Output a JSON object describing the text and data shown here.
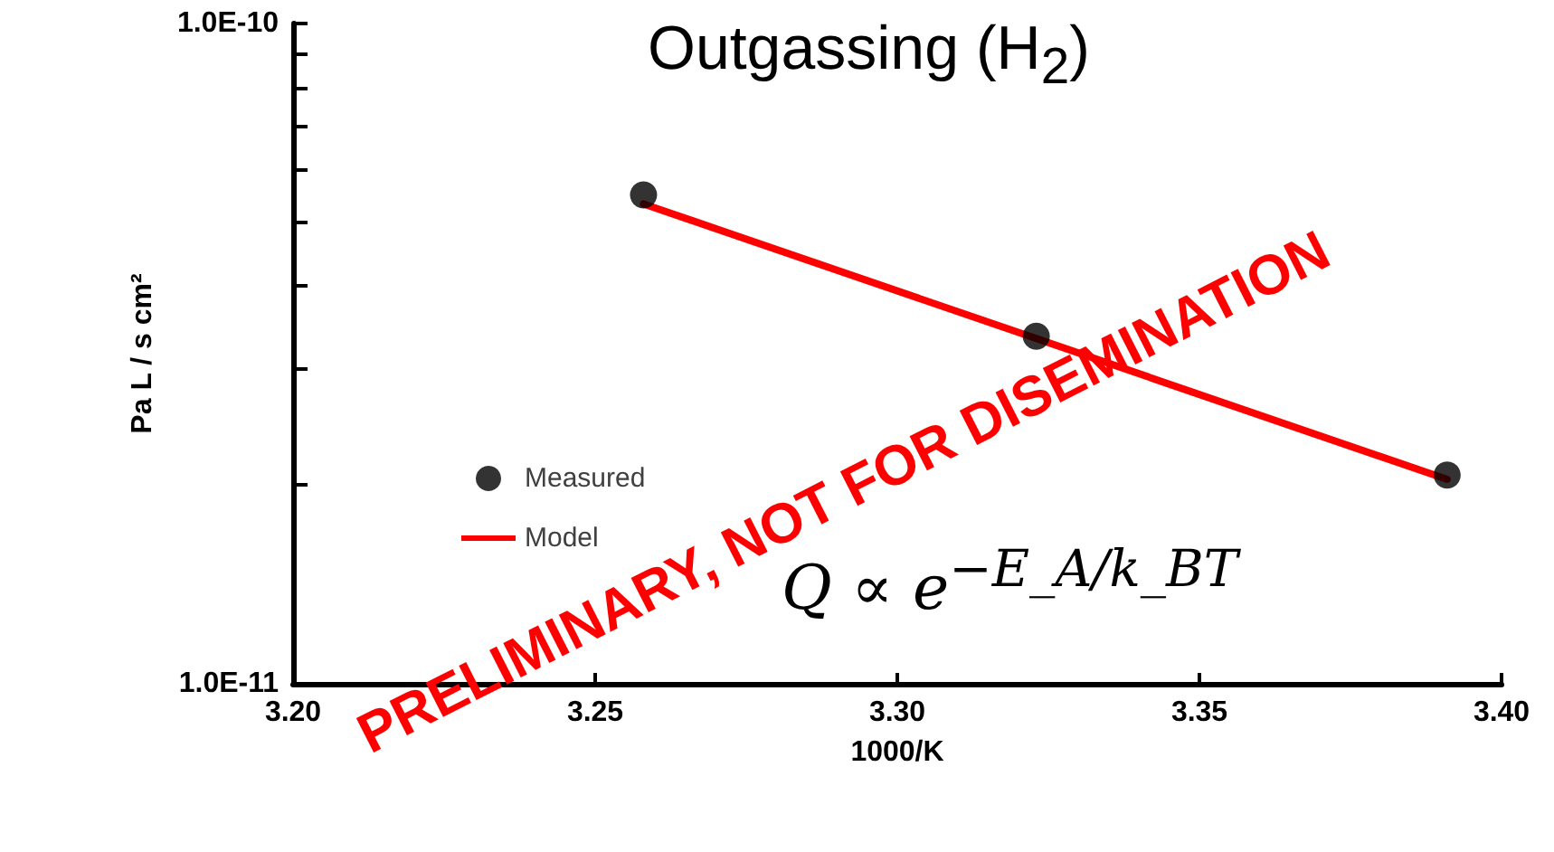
{
  "chart_data": {
    "type": "scatter",
    "title": "Outgassing (H$_{2}$)",
    "xlabel": "1000/K",
    "ylabel": "Pa L / s cm²",
    "annotations": [
      "Q ∝ e$^{−E_A/k_BT}$",
      "PRELIMINARY, NOT FOR DISEMINATION"
    ],
    "log": "y",
    "grid": false,
    "legend": "left",
    "xlim": [
      3.2,
      3.4
    ],
    "xticks": [
      {
        "value": 3.2,
        "label": "3.20"
      },
      {
        "value": 3.25,
        "label": "3.25"
      },
      {
        "value": 3.3,
        "label": "3.30"
      },
      {
        "value": 3.35,
        "label": "3.35"
      },
      {
        "value": 3.4,
        "label": "3.40"
      }
    ],
    "ylim": [
      1e-11,
      1e-10
    ],
    "yticks": [
      {
        "value": 1e-11,
        "label": "1.0E-11"
      },
      {
        "value": 2e-11,
        "label": null
      },
      {
        "value": 3e-11,
        "label": null
      },
      {
        "value": 4e-11,
        "label": null
      },
      {
        "value": 5e-11,
        "label": null
      },
      {
        "value": 6e-11,
        "label": null
      },
      {
        "value": 7e-11,
        "label": null
      },
      {
        "value": 8e-11,
        "label": null
      },
      {
        "value": 9e-11,
        "label": null
      },
      {
        "value": 1e-10,
        "label": "1.0E-10"
      }
    ],
    "series": [
      {
        "name": "Measured",
        "marker": "circle",
        "color": "#000000",
        "x": [
          3.258,
          3.323,
          3.391
        ],
        "values": [
          5.5e-11,
          3.36e-11,
          2.07e-11
        ]
      },
      {
        "name": "Model",
        "type": "line",
        "marker": "none",
        "line_style": "solid",
        "color": "#ff0000",
        "x": [
          3.258,
          3.391
        ],
        "values": [
          5.33e-11,
          2.04e-11
        ]
      }
    ]
  }
}
